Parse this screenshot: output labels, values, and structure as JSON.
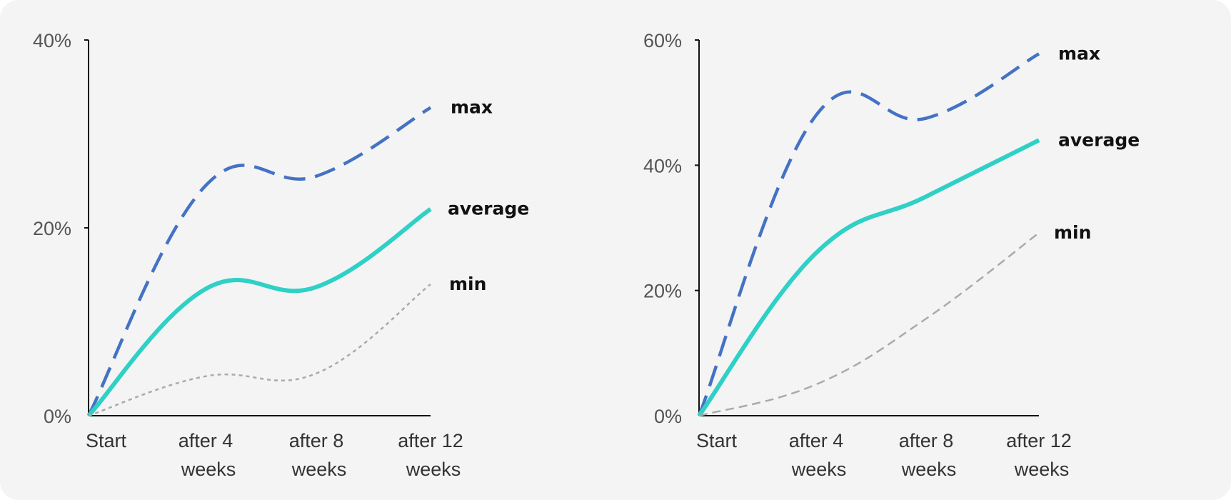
{
  "chart_data": [
    {
      "type": "line",
      "categories": [
        "Start",
        "after 4 weeks",
        "after 8 weeks",
        "after 12 weeks"
      ],
      "x_tick_lines": [
        [
          "Start"
        ],
        [
          "after 4",
          "weeks"
        ],
        [
          "after 8",
          "weeks"
        ],
        [
          "after 12",
          "weeks"
        ]
      ],
      "ylim": [
        0,
        40
      ],
      "yticks": [
        0,
        20,
        40
      ],
      "ytick_labels": [
        "0%",
        "20%",
        "40%"
      ],
      "series": [
        {
          "name": "max",
          "values": [
            0,
            24.5,
            25.5,
            32.8
          ],
          "color": "#4472c4",
          "style": "dashed"
        },
        {
          "name": "average",
          "values": [
            0,
            13.5,
            13.7,
            22.0
          ],
          "color": "#2fd0c6",
          "style": "solid"
        },
        {
          "name": "min",
          "values": [
            0,
            4.2,
            4.5,
            14.0
          ],
          "color": "#aaaaaa",
          "style": "dotted"
        }
      ]
    },
    {
      "type": "line",
      "categories": [
        "Start",
        "after 4 weeks",
        "after 8 weeks",
        "after 12 weeks"
      ],
      "x_tick_lines": [
        [
          "Start"
        ],
        [
          "after 4",
          "weeks"
        ],
        [
          "after 8",
          "weeks"
        ],
        [
          "after 12",
          "weeks"
        ]
      ],
      "ylim": [
        0,
        60
      ],
      "yticks": [
        0,
        20,
        40,
        60
      ],
      "ytick_labels": [
        "0%",
        "20%",
        "40%",
        "60%"
      ],
      "series": [
        {
          "name": "max",
          "values": [
            0,
            48,
            47.5,
            57.8
          ],
          "color": "#4472c4",
          "style": "dashed"
        },
        {
          "name": "average",
          "values": [
            0,
            26,
            35,
            44
          ],
          "color": "#2fd0c6",
          "style": "solid"
        },
        {
          "name": "min",
          "values": [
            0,
            5,
            15.5,
            29.2
          ],
          "color": "#aaaaaa",
          "style": "dashed"
        }
      ]
    }
  ]
}
